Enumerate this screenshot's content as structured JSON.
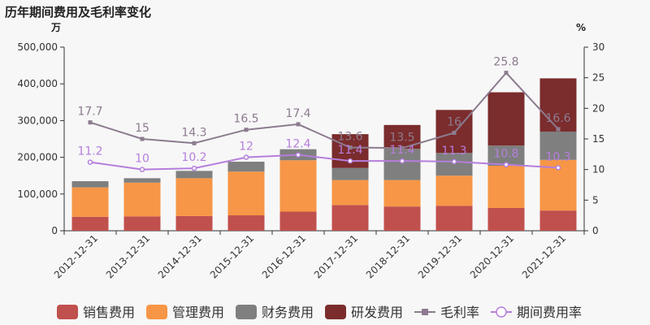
{
  "title": "历年期间费用及毛利率变化",
  "chart_data": {
    "type": "bar",
    "stacked": true,
    "categories": [
      "2012-12-31",
      "2013-12-31",
      "2014-12-31",
      "2015-12-31",
      "2016-12-31",
      "2017-12-31",
      "2018-12-31",
      "2019-12-31",
      "2020-12-31",
      "2021-12-31"
    ],
    "y_left": {
      "unit": "万",
      "ylim": [
        0,
        500000
      ],
      "ticks": [
        "0",
        "100,000",
        "200,000",
        "300,000",
        "400,000",
        "500,000"
      ],
      "tick_values": [
        0,
        100000,
        200000,
        300000,
        400000,
        500000
      ]
    },
    "y_right": {
      "unit": "%",
      "ylim": [
        0,
        30
      ],
      "ticks": [
        "0",
        "5",
        "10",
        "15",
        "20",
        "25",
        "30"
      ],
      "tick_values": [
        0,
        5,
        10,
        15,
        20,
        25,
        30
      ]
    },
    "series": [
      {
        "name": "销售费用",
        "type": "bar",
        "color": "#c0504d",
        "values": [
          38000,
          39000,
          40000,
          42000,
          52000,
          70000,
          66000,
          68000,
          62000,
          55000
        ]
      },
      {
        "name": "管理费用",
        "type": "bar",
        "color": "#f79646",
        "values": [
          80000,
          92000,
          103000,
          119000,
          140000,
          68000,
          72000,
          82000,
          115000,
          138000
        ]
      },
      {
        "name": "财务费用",
        "type": "bar",
        "color": "#7f7f7f",
        "values": [
          17000,
          12000,
          20000,
          27000,
          30000,
          33000,
          85000,
          62000,
          55000,
          77000
        ]
      },
      {
        "name": "研发费用",
        "type": "bar",
        "color": "#7b2c2c",
        "values": [
          0,
          0,
          0,
          0,
          0,
          92000,
          65000,
          117000,
          145000,
          145000
        ]
      },
      {
        "name": "毛利率",
        "type": "line",
        "axis": "right",
        "color": "#8c7b8f",
        "values": [
          17.7,
          15,
          14.3,
          16.5,
          17.4,
          13.6,
          13.5,
          16,
          25.8,
          16.6
        ]
      },
      {
        "name": "期间费用率",
        "type": "line",
        "axis": "right",
        "color": "#b57edc",
        "values": [
          11.2,
          10,
          10.2,
          12,
          12.4,
          11.4,
          11.4,
          11.3,
          10.8,
          10.3
        ]
      }
    ],
    "legend_position": "bottom",
    "grid": false
  }
}
